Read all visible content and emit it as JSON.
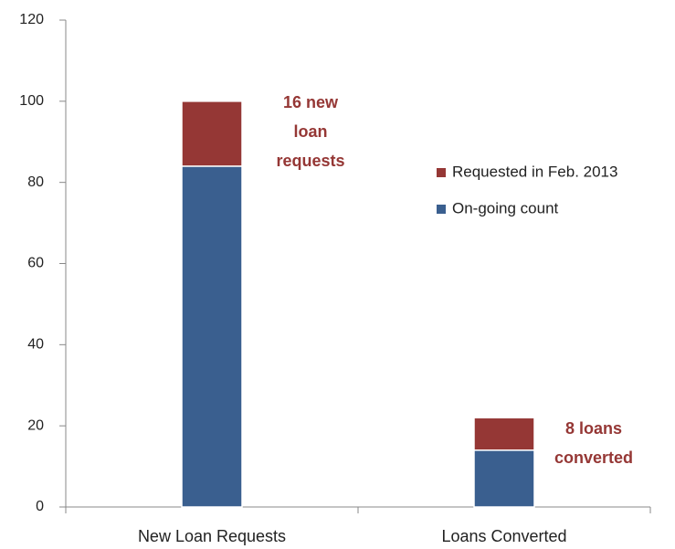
{
  "chart_data": {
    "type": "stacked_bar",
    "categories": [
      "New Loan Requests",
      "Loans Converted"
    ],
    "series": [
      {
        "name": "On-going count",
        "color": "#3a5f8f",
        "values": [
          84,
          14
        ]
      },
      {
        "name": "Requested in Feb. 2013",
        "color": "#953735",
        "values": [
          16,
          8
        ]
      }
    ],
    "ylim": [
      0,
      120
    ],
    "yticks": [
      0,
      20,
      40,
      60,
      80,
      100,
      120
    ],
    "grid": false,
    "legend": "right",
    "annotations": [
      {
        "text": [
          "16 new",
          "loan",
          "requests"
        ],
        "color": "#953735"
      },
      {
        "text": [
          "8 loans",
          "converted"
        ],
        "color": "#953735"
      }
    ]
  }
}
